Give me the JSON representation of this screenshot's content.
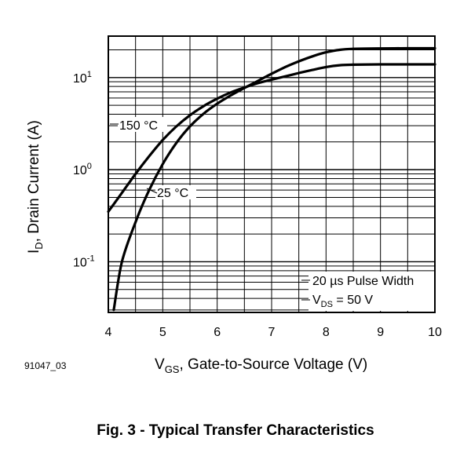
{
  "figure": {
    "id_label": "91047_03",
    "caption": "Fig. 3 - Typical Transfer Characteristics"
  },
  "chart_data": {
    "type": "line",
    "title": "Typical Transfer Characteristics",
    "xlabel": {
      "main": "V",
      "sub": "GS",
      "rest": ", Gate-to-Source Voltage (V)"
    },
    "ylabel": {
      "main": "I",
      "sub": "D",
      "rest": ", Drain Current (A)"
    },
    "x_scale": "linear",
    "y_scale": "log",
    "xlim": [
      4,
      10
    ],
    "ylim_log10": [
      -1.55,
      1.45
    ],
    "x_ticks": [
      4,
      5,
      6,
      7,
      8,
      9,
      10
    ],
    "x_tick_labels": [
      "4",
      "5",
      "6",
      "7",
      "8",
      "9",
      "10"
    ],
    "y_ticks": [
      {
        "base": "10",
        "exp": "1",
        "log_value": 1
      },
      {
        "base": "10",
        "exp": "0",
        "log_value": 0
      },
      {
        "base": "10",
        "exp": "-1",
        "log_value": -1
      }
    ],
    "grid": true,
    "series": [
      {
        "name": "150 °C",
        "label": "150 °C",
        "x": [
          4.0,
          4.25,
          4.5,
          4.75,
          5.0,
          5.25,
          5.5,
          5.75,
          6.0,
          6.25,
          6.5,
          6.75,
          7.0,
          7.25,
          7.5,
          7.75,
          8.0,
          8.25,
          8.5,
          9.0,
          9.5,
          10.0
        ],
        "y": [
          0.35,
          0.56,
          0.9,
          1.4,
          2.1,
          2.95,
          3.9,
          4.9,
          5.9,
          6.9,
          7.8,
          8.7,
          9.5,
          10.3,
          11.2,
          12.1,
          13.0,
          13.6,
          13.8,
          13.9,
          13.9,
          13.9
        ]
      },
      {
        "name": "25 °C",
        "label": "25 °C",
        "x": [
          4.1,
          4.25,
          4.5,
          4.75,
          5.0,
          5.25,
          5.5,
          5.75,
          6.0,
          6.25,
          6.5,
          6.75,
          7.0,
          7.25,
          7.5,
          7.75,
          8.0,
          8.25,
          8.5,
          9.0,
          9.5,
          10.0
        ],
        "y": [
          0.03,
          0.1,
          0.27,
          0.6,
          1.15,
          1.95,
          2.95,
          4.05,
          5.2,
          6.4,
          7.7,
          9.2,
          11.0,
          13.0,
          15.0,
          17.0,
          18.8,
          20.0,
          20.5,
          20.7,
          20.8,
          20.8
        ]
      }
    ],
    "annotations": {
      "pulse": "20 µs Pulse Width",
      "vds": {
        "main": "V",
        "sub": "DS",
        "rest": " = 50 V"
      }
    }
  }
}
